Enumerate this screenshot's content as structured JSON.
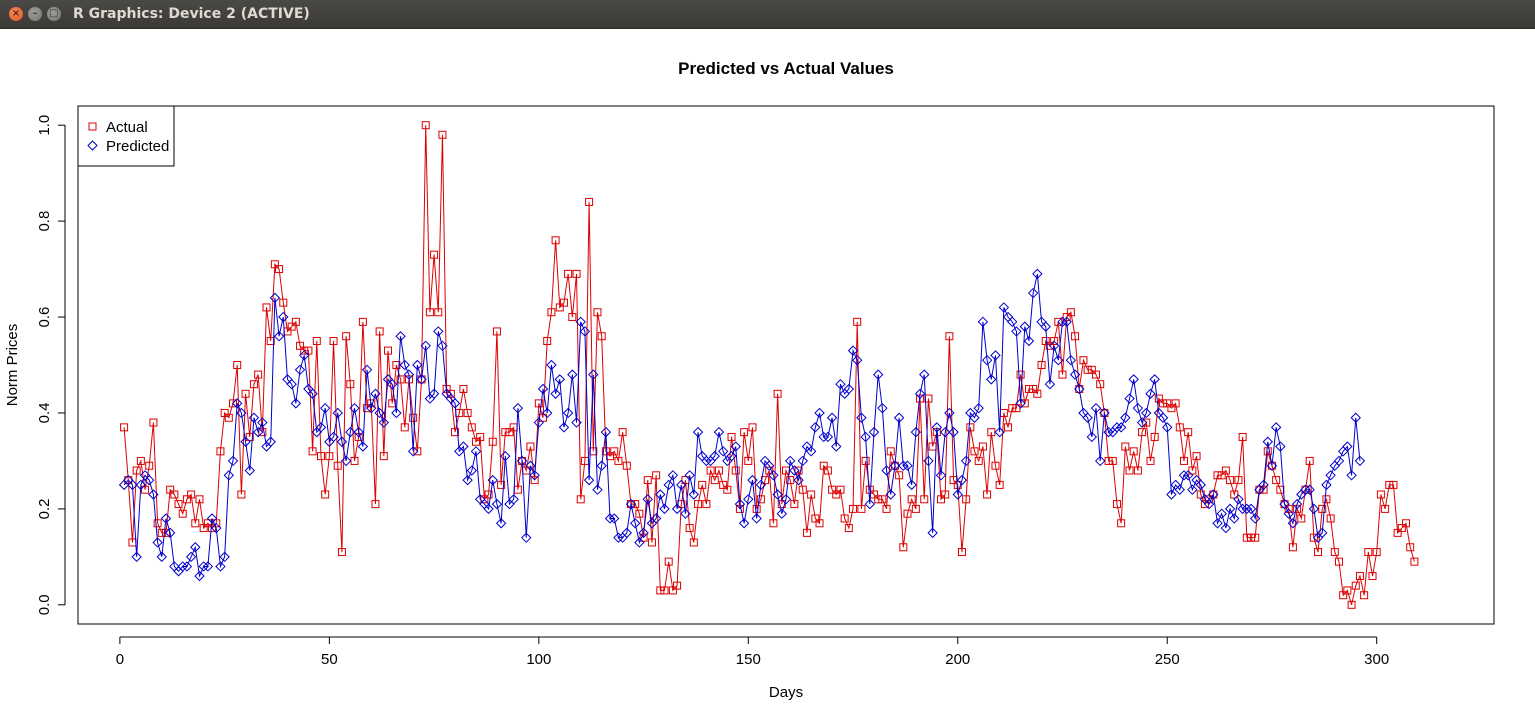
{
  "window": {
    "title": "R Graphics: Device 2 (ACTIVE)",
    "close_icon": "×",
    "minimize_icon": "–",
    "maximize_icon": "□"
  },
  "chart_data": {
    "type": "line",
    "title": "Predicted vs Actual Values",
    "xlabel": "Days",
    "ylabel": "Norm Prices",
    "xlim": [
      -10,
      328
    ],
    "ylim": [
      -0.04,
      1.04
    ],
    "x_ticks": [
      0,
      50,
      100,
      150,
      200,
      250,
      300
    ],
    "y_ticks": [
      0.0,
      0.2,
      0.4,
      0.6,
      0.8,
      1.0
    ],
    "y_tick_labels": [
      "0.0",
      "0.2",
      "0.4",
      "0.6",
      "0.8",
      "1.0"
    ],
    "legend_position": "top-left",
    "series": [
      {
        "name": "Actual",
        "color": "#dd0000",
        "marker": "square",
        "values": [
          0.37,
          0.26,
          0.13,
          0.28,
          0.3,
          0.24,
          0.29,
          0.38,
          0.17,
          0.15,
          0.15,
          0.24,
          0.23,
          0.21,
          0.19,
          0.22,
          0.23,
          0.17,
          0.22,
          0.16,
          0.17,
          0.16,
          0.17,
          0.32,
          0.4,
          0.39,
          0.42,
          0.5,
          0.23,
          0.44,
          0.35,
          0.46,
          0.48,
          0.36,
          0.62,
          0.55,
          0.71,
          0.7,
          0.63,
          0.57,
          0.58,
          0.59,
          0.54,
          0.53,
          0.53,
          0.32,
          0.55,
          0.31,
          0.23,
          0.31,
          0.55,
          0.29,
          0.11,
          0.56,
          0.46,
          0.3,
          0.35,
          0.59,
          0.41,
          0.42,
          0.21,
          0.57,
          0.31,
          0.53,
          0.42,
          0.5,
          0.47,
          0.37,
          0.47,
          0.39,
          0.32,
          0.47,
          1.0,
          0.61,
          0.73,
          0.61,
          0.98,
          0.45,
          0.44,
          0.36,
          0.4,
          0.45,
          0.4,
          0.37,
          0.34,
          0.35,
          0.22,
          0.23,
          0.34,
          0.57,
          0.25,
          0.36,
          0.36,
          0.37,
          0.24,
          0.3,
          0.28,
          0.33,
          0.26,
          0.42,
          0.39,
          0.55,
          0.61,
          0.76,
          0.62,
          0.63,
          0.69,
          0.6,
          0.69,
          0.22,
          0.3,
          0.84,
          0.32,
          0.61,
          0.56,
          0.32,
          0.31,
          0.32,
          0.3,
          0.36,
          0.29,
          0.21,
          0.21,
          0.19,
          0.14,
          0.26,
          0.13,
          0.27,
          0.03,
          0.03,
          0.09,
          0.03,
          0.04,
          0.21,
          0.26,
          0.16,
          0.13,
          0.21,
          0.25,
          0.21,
          0.28,
          0.26,
          0.28,
          0.25,
          0.24,
          0.35,
          0.28,
          0.2,
          0.36,
          0.3,
          0.37,
          0.2,
          0.22,
          0.26,
          0.28,
          0.17,
          0.44,
          0.21,
          0.28,
          0.26,
          0.21,
          0.28,
          0.24,
          0.15,
          0.23,
          0.18,
          0.17,
          0.29,
          0.28,
          0.24,
          0.23,
          0.24,
          0.18,
          0.16,
          0.2,
          0.59,
          0.2,
          0.3,
          0.24,
          0.23,
          0.22,
          0.22,
          0.2,
          0.32,
          0.29,
          0.27,
          0.12,
          0.19,
          0.22,
          0.2,
          0.43,
          0.22,
          0.43,
          0.33,
          0.36,
          0.22,
          0.23,
          0.56,
          0.26,
          0.25,
          0.11,
          0.22,
          0.37,
          0.32,
          0.3,
          0.33,
          0.23,
          0.36,
          0.29,
          0.25,
          0.4,
          0.37,
          0.41,
          0.41,
          0.48,
          0.42,
          0.45,
          0.45,
          0.44,
          0.5,
          0.55,
          0.54,
          0.55,
          0.59,
          0.48,
          0.6,
          0.61,
          0.56,
          0.45,
          0.51,
          0.49,
          0.49,
          0.48,
          0.46,
          0.4,
          0.3,
          0.3,
          0.21,
          0.17,
          0.33,
          0.28,
          0.32,
          0.28,
          0.36,
          0.38,
          0.3,
          0.35,
          0.43,
          0.42,
          0.42,
          0.41,
          0.42,
          0.37,
          0.3,
          0.36,
          0.28,
          0.31,
          0.23,
          0.21,
          0.22,
          0.23,
          0.27,
          0.27,
          0.28,
          0.26,
          0.23,
          0.26,
          0.35,
          0.14,
          0.14,
          0.14,
          0.24,
          0.24,
          0.32,
          0.29,
          0.26,
          0.24,
          0.21,
          0.2,
          0.12,
          0.2,
          0.18,
          0.24,
          0.3,
          0.14,
          0.11,
          0.2,
          0.22,
          0.18,
          0.11,
          0.09,
          0.02,
          0.03,
          0.0,
          0.04,
          0.06,
          0.02,
          0.11,
          0.06,
          0.11,
          0.23,
          0.2,
          0.25,
          0.25,
          0.15,
          0.16,
          0.17,
          0.12,
          0.09
        ]
      },
      {
        "name": "Predicted",
        "color": "#0000cc",
        "marker": "diamond",
        "values": [
          0.25,
          0.26,
          0.25,
          0.1,
          0.25,
          0.27,
          0.26,
          0.23,
          0.13,
          0.1,
          0.18,
          0.15,
          0.08,
          0.07,
          0.08,
          0.08,
          0.1,
          0.12,
          0.06,
          0.08,
          0.08,
          0.18,
          0.16,
          0.08,
          0.1,
          0.27,
          0.3,
          0.42,
          0.4,
          0.34,
          0.28,
          0.39,
          0.36,
          0.38,
          0.33,
          0.34,
          0.64,
          0.56,
          0.6,
          0.47,
          0.46,
          0.42,
          0.49,
          0.52,
          0.45,
          0.44,
          0.36,
          0.37,
          0.41,
          0.34,
          0.35,
          0.4,
          0.34,
          0.3,
          0.36,
          0.41,
          0.36,
          0.33,
          0.49,
          0.41,
          0.44,
          0.4,
          0.38,
          0.47,
          0.46,
          0.4,
          0.56,
          0.5,
          0.48,
          0.32,
          0.5,
          0.47,
          0.54,
          0.43,
          0.44,
          0.57,
          0.54,
          0.44,
          0.43,
          0.42,
          0.32,
          0.33,
          0.26,
          0.28,
          0.32,
          0.22,
          0.21,
          0.2,
          0.26,
          0.21,
          0.17,
          0.31,
          0.21,
          0.22,
          0.41,
          0.3,
          0.14,
          0.29,
          0.27,
          0.38,
          0.45,
          0.4,
          0.5,
          0.44,
          0.47,
          0.37,
          0.4,
          0.48,
          0.38,
          0.59,
          0.57,
          0.26,
          0.48,
          0.24,
          0.29,
          0.36,
          0.18,
          0.18,
          0.14,
          0.14,
          0.15,
          0.21,
          0.17,
          0.13,
          0.15,
          0.22,
          0.17,
          0.18,
          0.23,
          0.2,
          0.25,
          0.27,
          0.2,
          0.25,
          0.19,
          0.27,
          0.23,
          0.36,
          0.31,
          0.3,
          0.3,
          0.31,
          0.36,
          0.32,
          0.3,
          0.31,
          0.33,
          0.21,
          0.17,
          0.22,
          0.26,
          0.18,
          0.25,
          0.3,
          0.29,
          0.27,
          0.23,
          0.19,
          0.22,
          0.3,
          0.28,
          0.26,
          0.3,
          0.33,
          0.32,
          0.37,
          0.4,
          0.35,
          0.35,
          0.39,
          0.33,
          0.46,
          0.44,
          0.45,
          0.53,
          0.51,
          0.39,
          0.35,
          0.21,
          0.36,
          0.48,
          0.41,
          0.28,
          0.23,
          0.29,
          0.39,
          0.29,
          0.29,
          0.25,
          0.36,
          0.44,
          0.48,
          0.3,
          0.15,
          0.37,
          0.27,
          0.36,
          0.4,
          0.36,
          0.23,
          0.26,
          0.3,
          0.4,
          0.39,
          0.41,
          0.59,
          0.51,
          0.47,
          0.52,
          0.36,
          0.62,
          0.6,
          0.59,
          0.57,
          0.42,
          0.58,
          0.55,
          0.65,
          0.69,
          0.59,
          0.58,
          0.46,
          0.54,
          0.51,
          0.59,
          0.59,
          0.51,
          0.48,
          0.45,
          0.4,
          0.39,
          0.35,
          0.41,
          0.3,
          0.4,
          0.36,
          0.36,
          0.37,
          0.37,
          0.39,
          0.43,
          0.47,
          0.41,
          0.38,
          0.4,
          0.44,
          0.47,
          0.4,
          0.39,
          0.37,
          0.23,
          0.25,
          0.24,
          0.27,
          0.27,
          0.24,
          0.26,
          0.25,
          0.22,
          0.21,
          0.23,
          0.17,
          0.19,
          0.16,
          0.2,
          0.18,
          0.22,
          0.2,
          0.2,
          0.2,
          0.18,
          0.24,
          0.25,
          0.34,
          0.29,
          0.37,
          0.33,
          0.21,
          0.19,
          0.17,
          0.21,
          0.23,
          0.24,
          0.24,
          0.2,
          0.14,
          0.15,
          0.25,
          0.27,
          0.29,
          0.3,
          0.32,
          0.33,
          0.27,
          0.39,
          0.3
        ]
      }
    ]
  }
}
